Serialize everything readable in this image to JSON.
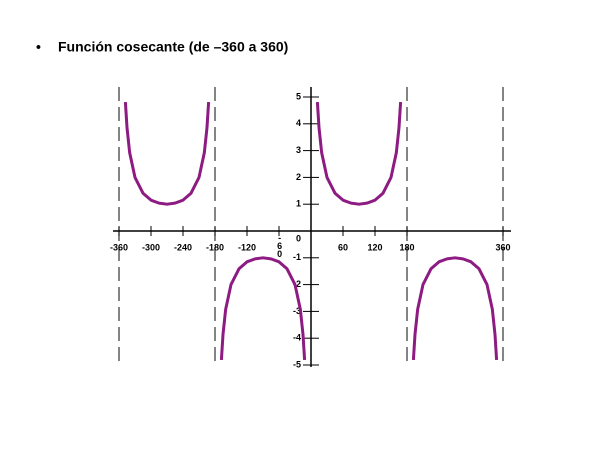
{
  "chart_data": {
    "type": "line",
    "bullet": "•",
    "title": "Función cosecante (de –360 a 360)",
    "x": [
      -348,
      -345,
      -340,
      -330,
      -315,
      -300,
      -285,
      -270,
      -255,
      -240,
      -225,
      -210,
      -200,
      -195,
      -192,
      -180,
      -168,
      -165,
      -160,
      -150,
      -135,
      -120,
      -105,
      -90,
      -75,
      -60,
      -45,
      -30,
      -20,
      -15,
      -12,
      0,
      12,
      15,
      20,
      30,
      45,
      60,
      75,
      90,
      105,
      120,
      135,
      150,
      160,
      165,
      168,
      180,
      192,
      195,
      200,
      210,
      225,
      240,
      255,
      270,
      285,
      300,
      315,
      330,
      340,
      345,
      348
    ],
    "series": [
      {
        "color": "#8e1b82",
        "values": [
          4.81,
          3.86,
          2.92,
          2,
          1.41,
          1.15,
          1.04,
          1,
          1.04,
          1.15,
          1.41,
          2,
          2.92,
          3.86,
          4.81,
          null,
          -4.81,
          -3.86,
          -2.92,
          -2,
          -1.41,
          -1.15,
          -1.04,
          -1,
          -1.04,
          -1.15,
          -1.41,
          -2,
          -2.92,
          -3.86,
          -4.81,
          null,
          4.81,
          3.86,
          2.92,
          2,
          1.41,
          1.15,
          1.04,
          1,
          1.04,
          1.15,
          1.41,
          2,
          2.92,
          3.86,
          4.81,
          null,
          -4.81,
          -3.86,
          -2.92,
          -2,
          -1.41,
          -1.15,
          -1.04,
          -1,
          -1.04,
          -1.15,
          -1.41,
          -2,
          -2.92,
          -3.86,
          -4.81
        ]
      }
    ],
    "asymptotes": [
      -360,
      -180,
      180,
      360
    ],
    "xlim": [
      -360,
      360
    ],
    "ylim": [
      -5,
      5
    ],
    "xticks": [
      -360,
      -300,
      -240,
      -180,
      -120,
      -60,
      60,
      120,
      180,
      360
    ],
    "yticks": [
      5,
      4,
      3,
      2,
      1,
      0,
      -1,
      -2,
      -3,
      -4,
      -5
    ]
  }
}
